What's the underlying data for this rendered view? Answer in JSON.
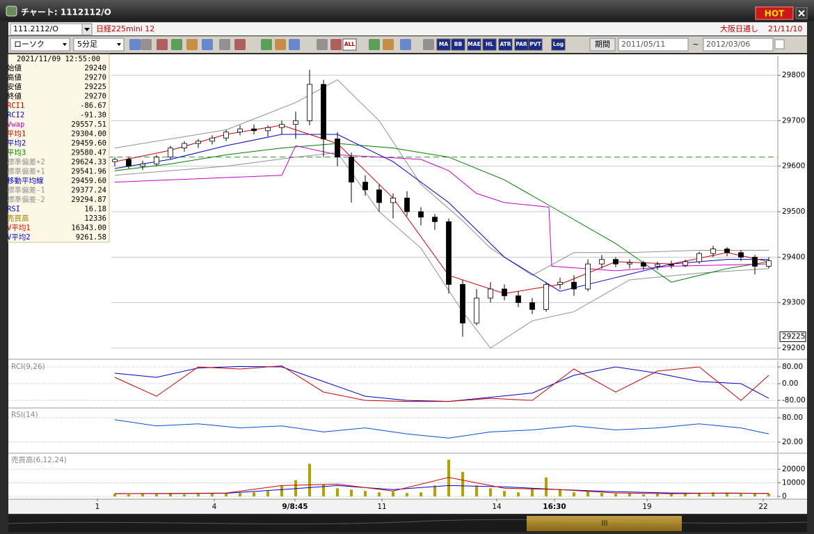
{
  "window": {
    "title": "チャート: 1112112/O",
    "hot": "HOT"
  },
  "header": {
    "symbol": "111.2112/O",
    "name": "日経225mini 12",
    "session": "大阪日通し",
    "date": "21/11/10"
  },
  "toolbar": {
    "chart_style": "ローソク",
    "interval": "5分足",
    "icon_labels": [
      "ALL",
      "MA",
      "BB",
      "MAE",
      "HL",
      "ATR",
      "PAR",
      "PVT",
      "Log"
    ],
    "period_label": "期間",
    "start": "2011/05/11",
    "separator": "~",
    "end": "2012/03/06"
  },
  "info_panel": {
    "datetime": "2021/11/09 12:55:00",
    "rows": [
      {
        "label": "始値",
        "value": "29240",
        "color": "#000000"
      },
      {
        "label": "高値",
        "value": "29270",
        "color": "#000000"
      },
      {
        "label": "安値",
        "value": "29225",
        "color": "#000000"
      },
      {
        "label": "終値",
        "value": "29270",
        "color": "#000000"
      },
      {
        "label": "RCI1",
        "value": "-86.67",
        "color": "#cc0000"
      },
      {
        "label": "RCI2",
        "value": "-91.30",
        "color": "#0000cc"
      },
      {
        "label": "Vwap",
        "value": "29557.51",
        "color": "#cc00cc"
      },
      {
        "label": "平均1",
        "value": "29304.00",
        "color": "#cc0000"
      },
      {
        "label": "平均2",
        "value": "29459.60",
        "color": "#0000cc"
      },
      {
        "label": "平均3",
        "value": "29580.47",
        "color": "#008000"
      },
      {
        "label": "標準偏差+2",
        "value": "29624.33",
        "color": "#909090"
      },
      {
        "label": "標準偏差+1",
        "value": "29541.96",
        "color": "#909090"
      },
      {
        "label": "移動平均線",
        "value": "29459.60",
        "color": "#0000cc"
      },
      {
        "label": "標準偏差-1",
        "value": "29377.24",
        "color": "#909090"
      },
      {
        "label": "標準偏差-2",
        "value": "29294.87",
        "color": "#909090"
      },
      {
        "label": "RSI",
        "value": "16.18",
        "color": "#0000cc"
      },
      {
        "label": "売買高",
        "value": "12336",
        "color": "#a08000"
      },
      {
        "label": "V平均1",
        "value": "16343.00",
        "color": "#cc0000"
      },
      {
        "label": "V平均2",
        "value": "9261.58",
        "color": "#0000cc"
      }
    ]
  },
  "chart_data": [
    {
      "type": "candlestick",
      "x": [
        0,
        1,
        2,
        3,
        4,
        5,
        6,
        7,
        8,
        9,
        10,
        11,
        12,
        13,
        14,
        15,
        16,
        17,
        18,
        19,
        20,
        21,
        22,
        23,
        24,
        25,
        26,
        27,
        28,
        29,
        30,
        31,
        32,
        33,
        34,
        35,
        36,
        37,
        38,
        39,
        40,
        41,
        42,
        43,
        44,
        45,
        46,
        47
      ],
      "open": [
        29610,
        29615,
        29600,
        29605,
        29620,
        29640,
        29650,
        29655,
        29662,
        29675,
        29682,
        29678,
        29685,
        29692,
        29700,
        29780,
        29660,
        29620,
        29565,
        29548,
        29520,
        29530,
        29500,
        29488,
        29478,
        29340,
        29255,
        29310,
        29330,
        29315,
        29300,
        29285,
        29340,
        29345,
        29330,
        29385,
        29395,
        29385,
        29388,
        29380,
        29384,
        29382,
        29390,
        29408,
        29418,
        29410,
        29400,
        29380
      ],
      "high": [
        29620,
        29620,
        29612,
        29625,
        29645,
        29655,
        29660,
        29668,
        29680,
        29690,
        29692,
        29690,
        29700,
        29720,
        29812,
        29790,
        29675,
        29630,
        29580,
        29560,
        29540,
        29545,
        29510,
        29495,
        29485,
        29350,
        29330,
        29345,
        29340,
        29325,
        29310,
        29345,
        29355,
        29360,
        29395,
        29405,
        29400,
        29395,
        29392,
        29390,
        29392,
        29395,
        29412,
        29425,
        29422,
        29415,
        29405,
        29400
      ],
      "low": [
        29600,
        29595,
        29592,
        29600,
        29615,
        29632,
        29640,
        29648,
        29655,
        29668,
        29670,
        29665,
        29670,
        29660,
        29690,
        29620,
        29600,
        29520,
        29535,
        29500,
        29485,
        29490,
        29470,
        29460,
        29320,
        29225,
        29250,
        29300,
        29305,
        29290,
        29275,
        29280,
        29330,
        29315,
        29325,
        29375,
        29378,
        29375,
        29372,
        29372,
        29375,
        29378,
        29385,
        29400,
        29402,
        29392,
        29362,
        29375
      ],
      "close": [
        29615,
        29600,
        29605,
        29620,
        29640,
        29650,
        29655,
        29662,
        29675,
        29682,
        29678,
        29685,
        29692,
        29700,
        29780,
        29660,
        29620,
        29565,
        29548,
        29520,
        29530,
        29500,
        29488,
        29478,
        29340,
        29255,
        29310,
        29330,
        29315,
        29300,
        29285,
        29340,
        29345,
        29330,
        29385,
        29395,
        29385,
        29388,
        29380,
        29384,
        29382,
        29390,
        29408,
        29418,
        29410,
        29400,
        29380,
        29392
      ],
      "lines": [
        {
          "color": "#909090",
          "x": [
            0,
            8,
            13,
            16,
            19,
            22,
            25,
            27,
            30,
            33,
            37,
            42,
            47
          ],
          "values": [
            29640,
            29680,
            29740,
            29790,
            29700,
            29560,
            29480,
            29420,
            29360,
            29410,
            29410,
            29415,
            29415
          ]
        },
        {
          "color": "#909090",
          "x": [
            0,
            8,
            13,
            16,
            19,
            22,
            25,
            27,
            30,
            33,
            37,
            42,
            47
          ],
          "values": [
            29580,
            29600,
            29620,
            29630,
            29500,
            29420,
            29280,
            29200,
            29260,
            29280,
            29350,
            29365,
            29375
          ]
        },
        {
          "color": "#008000",
          "x": [
            0,
            4,
            8,
            12,
            16,
            20,
            24,
            28,
            32,
            36,
            40,
            44,
            47
          ],
          "values": [
            29590,
            29605,
            29625,
            29640,
            29650,
            29640,
            29620,
            29570,
            29500,
            29430,
            29345,
            29375,
            29390
          ]
        },
        {
          "color": "#cc00cc",
          "x": [
            0,
            12,
            13,
            16,
            22,
            24,
            26,
            28,
            31.2,
            31.4,
            36,
            40,
            47
          ],
          "values": [
            29565,
            29580,
            29645,
            29625,
            29615,
            29590,
            29540,
            29520,
            29510,
            29380,
            29370,
            29380,
            29385
          ]
        },
        {
          "color": "#0000cc",
          "x": [
            0,
            4,
            8,
            12,
            16,
            20,
            24,
            28,
            32,
            36,
            40,
            44,
            47
          ],
          "values": [
            29595,
            29615,
            29645,
            29670,
            29670,
            29610,
            29520,
            29400,
            29325,
            29355,
            29385,
            29395,
            29395
          ]
        },
        {
          "color": "#cc0000",
          "x": [
            0,
            4,
            8,
            12,
            16,
            20,
            24,
            28,
            32,
            36,
            40,
            44,
            47
          ],
          "values": [
            29610,
            29635,
            29670,
            29690,
            29650,
            29530,
            29360,
            29320,
            29340,
            29390,
            29385,
            29410,
            29390
          ]
        }
      ],
      "reference_line": {
        "value": 29620,
        "color": "#2a9a2a"
      },
      "last_price": 29225,
      "xlim": [
        -7.65,
        47.65
      ],
      "xticks": [
        {
          "value": -1.25,
          "label": "1"
        },
        {
          "value": 7.15,
          "label": "4"
        },
        {
          "value": 12.95,
          "label": "9/8:45"
        },
        {
          "value": 19.2,
          "label": "11"
        },
        {
          "value": 27.45,
          "label": "14"
        },
        {
          "value": 31.6,
          "label": "16:30"
        },
        {
          "value": 38.25,
          "label": "19"
        },
        {
          "value": 46.6,
          "label": "22"
        }
      ],
      "ylim": [
        29177,
        29843
      ],
      "yticks": [
        29200,
        29300,
        29400,
        29500,
        29600,
        29700,
        29800
      ],
      "grid": true
    },
    {
      "type": "line",
      "title": "RCI(9,26)",
      "ylim": [
        -113,
        110
      ],
      "yticks": [
        {
          "value": 80,
          "label": "80.00"
        },
        {
          "value": 0,
          "label": "0.00"
        },
        {
          "value": -80,
          "label": "-80.00"
        }
      ],
      "grid": true,
      "series": [
        {
          "color": "#0000cc",
          "x": [
            0,
            3,
            6,
            9,
            12,
            15,
            18,
            21,
            24,
            27,
            30,
            33,
            36,
            39,
            42,
            45,
            47
          ],
          "values": [
            50,
            30,
            75,
            82,
            80,
            10,
            -60,
            -80,
            -85,
            -65,
            -45,
            40,
            80,
            50,
            10,
            0,
            -70
          ]
        },
        {
          "color": "#cc0000",
          "x": [
            0,
            3,
            6,
            9,
            12,
            15,
            18,
            21,
            24,
            27,
            30,
            33,
            36,
            39,
            42,
            45,
            47
          ],
          "values": [
            30,
            -60,
            80,
            70,
            85,
            -40,
            -80,
            -85,
            -85,
            -70,
            -80,
            70,
            -40,
            60,
            80,
            -80,
            40
          ]
        }
      ]
    },
    {
      "type": "line",
      "title": "RSI(14)",
      "ylim": [
        -5.7,
        102.3
      ],
      "yticks": [
        {
          "value": 80,
          "label": "80.00"
        },
        {
          "value": 20,
          "label": "20.00"
        }
      ],
      "grid": true,
      "series": [
        {
          "color": "#0050dd",
          "x": [
            0,
            3,
            6,
            9,
            12,
            15,
            18,
            21,
            24,
            27,
            30,
            33,
            36,
            39,
            42,
            45,
            47
          ],
          "values": [
            75,
            60,
            65,
            55,
            60,
            45,
            55,
            40,
            30,
            45,
            50,
            60,
            50,
            55,
            65,
            55,
            40
          ]
        }
      ]
    },
    {
      "type": "bar",
      "title": "売買高(6,12,24)",
      "color": "#b5a100",
      "ylim": [
        -1540,
        31280
      ],
      "yticks": [
        0,
        10000,
        20000
      ],
      "grid": true,
      "values": [
        2000,
        1500,
        2000,
        1800,
        2500,
        1500,
        1800,
        2000,
        2200,
        2500,
        3000,
        4000,
        8000,
        12000,
        24000,
        9000,
        6000,
        5000,
        4000,
        3000,
        3500,
        2500,
        3000,
        8000,
        27000,
        18000,
        8000,
        6000,
        4000,
        3000,
        6000,
        14000,
        5000,
        3000,
        4000,
        2500,
        2000,
        2500,
        1500,
        2000,
        1800,
        2000,
        2500,
        3000,
        2000,
        1800,
        2500,
        2000
      ],
      "lines": [
        {
          "color": "#0000cc",
          "x": [
            0,
            4,
            8,
            12,
            16,
            20,
            24,
            28,
            32,
            36,
            40,
            44,
            47
          ],
          "values": [
            2100,
            2100,
            2300,
            5000,
            8000,
            5000,
            8000,
            7000,
            5000,
            3500,
            2500,
            2300,
            2200
          ]
        },
        {
          "color": "#cc0000",
          "x": [
            0,
            4,
            8,
            12,
            16,
            20,
            24,
            28,
            32,
            36,
            40,
            44,
            47
          ],
          "values": [
            2000,
            2200,
            2500,
            8000,
            9000,
            4000,
            14000,
            6000,
            5000,
            2500,
            2000,
            2500,
            2200
          ]
        }
      ]
    }
  ]
}
